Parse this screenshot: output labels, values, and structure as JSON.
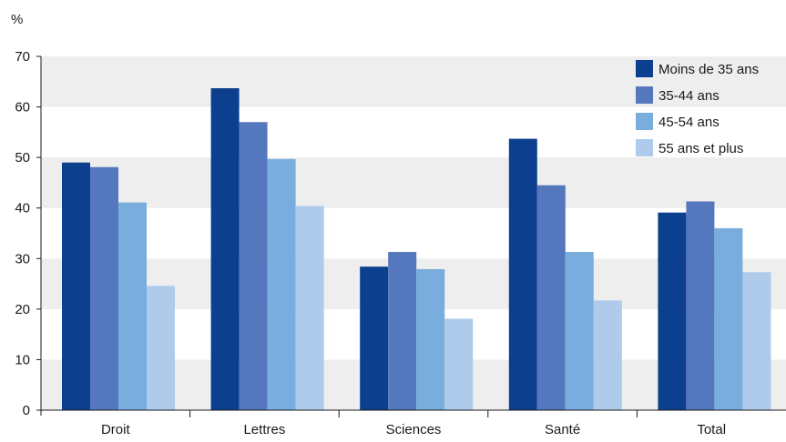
{
  "chart_data": {
    "type": "bar",
    "ylabel": "%",
    "ylim": [
      0,
      70
    ],
    "yticks": [
      0,
      10,
      20,
      30,
      40,
      50,
      60,
      70
    ],
    "grid": "alternating horizontal bands",
    "legend_position": "top-right",
    "categories": [
      "Droit",
      "Lettres",
      "Sciences",
      "Santé",
      "Total"
    ],
    "series": [
      {
        "name": "Moins de 35 ans",
        "color": "#0d3f8f",
        "values": [
          49.0,
          63.7,
          28.4,
          53.7,
          39.1
        ]
      },
      {
        "name": "35-44 ans",
        "color": "#5577be",
        "values": [
          48.1,
          57.0,
          31.3,
          44.5,
          41.3
        ]
      },
      {
        "name": "45-54 ans",
        "color": "#78addd",
        "values": [
          41.1,
          49.7,
          27.9,
          31.3,
          36.0
        ]
      },
      {
        "name": "55 ans et plus",
        "color": "#aecbeb",
        "values": [
          24.6,
          40.4,
          18.1,
          21.7,
          27.3
        ]
      }
    ]
  }
}
